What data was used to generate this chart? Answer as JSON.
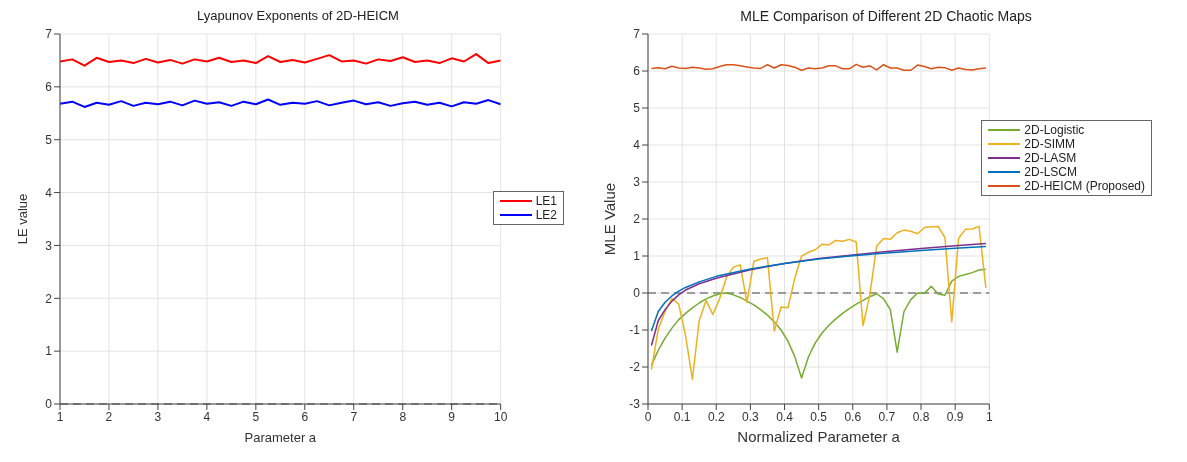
{
  "chart_data": [
    {
      "type": "line",
      "title": "Lyapunov Exponents of 2D-HEICM",
      "xlabel": "Parameter a",
      "ylabel": "LE value",
      "xlim": [
        1,
        10
      ],
      "xticks": [
        1,
        2,
        3,
        4,
        5,
        6,
        7,
        8,
        9,
        10
      ],
      "ylim": [
        0,
        7
      ],
      "yticks": [
        0,
        1,
        2,
        3,
        4,
        5,
        6,
        7
      ],
      "grid": true,
      "legend": "right",
      "line_style": "solid",
      "marker": "none",
      "x": [
        1,
        1.25,
        1.5,
        1.75,
        2,
        2.25,
        2.5,
        2.75,
        3,
        3.25,
        3.5,
        3.75,
        4,
        4.25,
        4.5,
        4.75,
        5,
        5.25,
        5.5,
        5.75,
        6,
        6.25,
        6.5,
        6.75,
        7,
        7.25,
        7.5,
        7.75,
        8,
        8.25,
        8.5,
        8.75,
        9,
        9.25,
        9.5,
        9.75,
        10
      ],
      "series": [
        {
          "name": "LE1",
          "color": "#ff0000",
          "values": [
            6.48,
            6.52,
            6.4,
            6.55,
            6.47,
            6.5,
            6.45,
            6.53,
            6.46,
            6.51,
            6.44,
            6.52,
            6.48,
            6.55,
            6.47,
            6.5,
            6.45,
            6.58,
            6.47,
            6.51,
            6.46,
            6.53,
            6.6,
            6.48,
            6.5,
            6.44,
            6.52,
            6.49,
            6.56,
            6.47,
            6.5,
            6.45,
            6.54,
            6.48,
            6.62,
            6.45,
            6.5
          ]
        },
        {
          "name": "LE2",
          "color": "#0000ff",
          "values": [
            5.68,
            5.72,
            5.62,
            5.7,
            5.66,
            5.73,
            5.64,
            5.7,
            5.67,
            5.72,
            5.65,
            5.74,
            5.68,
            5.71,
            5.64,
            5.72,
            5.67,
            5.76,
            5.66,
            5.7,
            5.68,
            5.73,
            5.65,
            5.7,
            5.74,
            5.67,
            5.71,
            5.64,
            5.69,
            5.72,
            5.66,
            5.7,
            5.63,
            5.71,
            5.68,
            5.75,
            5.67
          ]
        }
      ],
      "ref_lines": [
        {
          "axis": "y",
          "value": 0,
          "color": "#808080",
          "line_style": "dashed"
        }
      ]
    },
    {
      "type": "line",
      "title": "MLE Comparison of Different 2D Chaotic Maps",
      "xlabel": "Normalized Parameter a",
      "ylabel": "MLE Value",
      "xlim": [
        0,
        1
      ],
      "xticks": [
        0,
        0.1,
        0.2,
        0.3,
        0.4,
        0.5,
        0.6,
        0.7,
        0.8,
        0.9,
        1
      ],
      "ylim": [
        -3,
        7
      ],
      "yticks": [
        -3,
        -2,
        -1,
        0,
        1,
        2,
        3,
        4,
        5,
        6,
        7
      ],
      "grid": true,
      "legend": "right",
      "line_style": "solid",
      "marker": "none",
      "x": [
        0.01,
        0.03,
        0.05,
        0.07,
        0.09,
        0.11,
        0.13,
        0.15,
        0.17,
        0.19,
        0.21,
        0.23,
        0.25,
        0.27,
        0.29,
        0.31,
        0.33,
        0.35,
        0.37,
        0.39,
        0.41,
        0.43,
        0.45,
        0.47,
        0.49,
        0.51,
        0.53,
        0.55,
        0.57,
        0.59,
        0.61,
        0.63,
        0.65,
        0.67,
        0.69,
        0.71,
        0.73,
        0.75,
        0.77,
        0.79,
        0.81,
        0.83,
        0.85,
        0.87,
        0.89,
        0.91,
        0.93,
        0.95,
        0.97,
        0.99
      ],
      "series": [
        {
          "name": "2D-Logistic",
          "color": "#77ac30",
          "values": [
            -1.95,
            -1.55,
            -1.22,
            -0.95,
            -0.72,
            -0.55,
            -0.4,
            -0.27,
            -0.16,
            -0.08,
            -0.02,
            0,
            -0.05,
            -0.12,
            -0.22,
            -0.32,
            -0.45,
            -0.6,
            -0.78,
            -1.0,
            -1.3,
            -1.72,
            -2.3,
            -1.73,
            -1.35,
            -1.08,
            -0.87,
            -0.7,
            -0.55,
            -0.42,
            -0.3,
            -0.2,
            -0.1,
            -0.02,
            -0.15,
            -0.45,
            -1.6,
            -0.5,
            -0.18,
            0,
            -0.01,
            0.18,
            -0.03,
            -0.06,
            0.32,
            0.45,
            0.5,
            0.55,
            0.62,
            0.64
          ]
        },
        {
          "name": "2D-SIMM",
          "color": "#edb120",
          "values": [
            -2.07,
            -0.98,
            -0.5,
            -0.15,
            -0.3,
            -1.15,
            -2.33,
            -0.75,
            -0.2,
            -0.58,
            -0.15,
            0.42,
            0.7,
            0.76,
            -0.25,
            0.85,
            0.92,
            0.95,
            -1.03,
            -0.38,
            -0.4,
            0.4,
            1.0,
            1.1,
            1.17,
            1.32,
            1.3,
            1.42,
            1.4,
            1.45,
            1.38,
            -0.88,
            -0.05,
            1.27,
            1.47,
            1.45,
            1.63,
            1.7,
            1.67,
            1.6,
            1.77,
            1.79,
            1.8,
            1.5,
            -0.78,
            1.48,
            1.72,
            1.73,
            1.8,
            0.13
          ]
        },
        {
          "name": "2D-LASM",
          "color": "#7e2f8e",
          "x": [
            0.01,
            0.03,
            0.05,
            0.07,
            0.09,
            0.11,
            0.15,
            0.2,
            0.3,
            0.4,
            0.5,
            0.6,
            0.7,
            0.8,
            0.9,
            0.99
          ],
          "values": [
            -1.42,
            -0.75,
            -0.45,
            -0.22,
            -0.05,
            0.08,
            0.25,
            0.4,
            0.63,
            0.8,
            0.93,
            1.03,
            1.12,
            1.2,
            1.28,
            1.34
          ]
        },
        {
          "name": "2D-LSCM",
          "color": "#0072bd",
          "x": [
            0.01,
            0.03,
            0.05,
            0.07,
            0.09,
            0.11,
            0.15,
            0.2,
            0.3,
            0.4,
            0.5,
            0.6,
            0.7,
            0.8,
            0.9,
            0.99
          ],
          "values": [
            -1.03,
            -0.5,
            -0.25,
            -0.08,
            0.05,
            0.15,
            0.3,
            0.45,
            0.65,
            0.8,
            0.92,
            1.01,
            1.08,
            1.15,
            1.21,
            1.26
          ]
        },
        {
          "name": "2D-HEICM (Proposed)",
          "color": "#d95319",
          "values": [
            6.07,
            6.09,
            6.06,
            6.13,
            6.08,
            6.07,
            6.1,
            6.08,
            6.05,
            6.06,
            6.12,
            6.17,
            6.17,
            6.14,
            6.11,
            6.08,
            6.07,
            6.17,
            6.08,
            6.17,
            6.15,
            6.1,
            6.02,
            6.08,
            6.06,
            6.08,
            6.14,
            6.14,
            6.06,
            6.06,
            6.18,
            6.1,
            6.14,
            6.03,
            6.17,
            6.08,
            6.08,
            6.02,
            6.02,
            6.16,
            6.12,
            6.06,
            6.1,
            6.09,
            6.02,
            6.08,
            6.04,
            6.03,
            6.06,
            6.08
          ]
        }
      ],
      "ref_lines": [
        {
          "axis": "y",
          "value": 0,
          "color": "#808080",
          "line_style": "dashed"
        }
      ]
    }
  ]
}
